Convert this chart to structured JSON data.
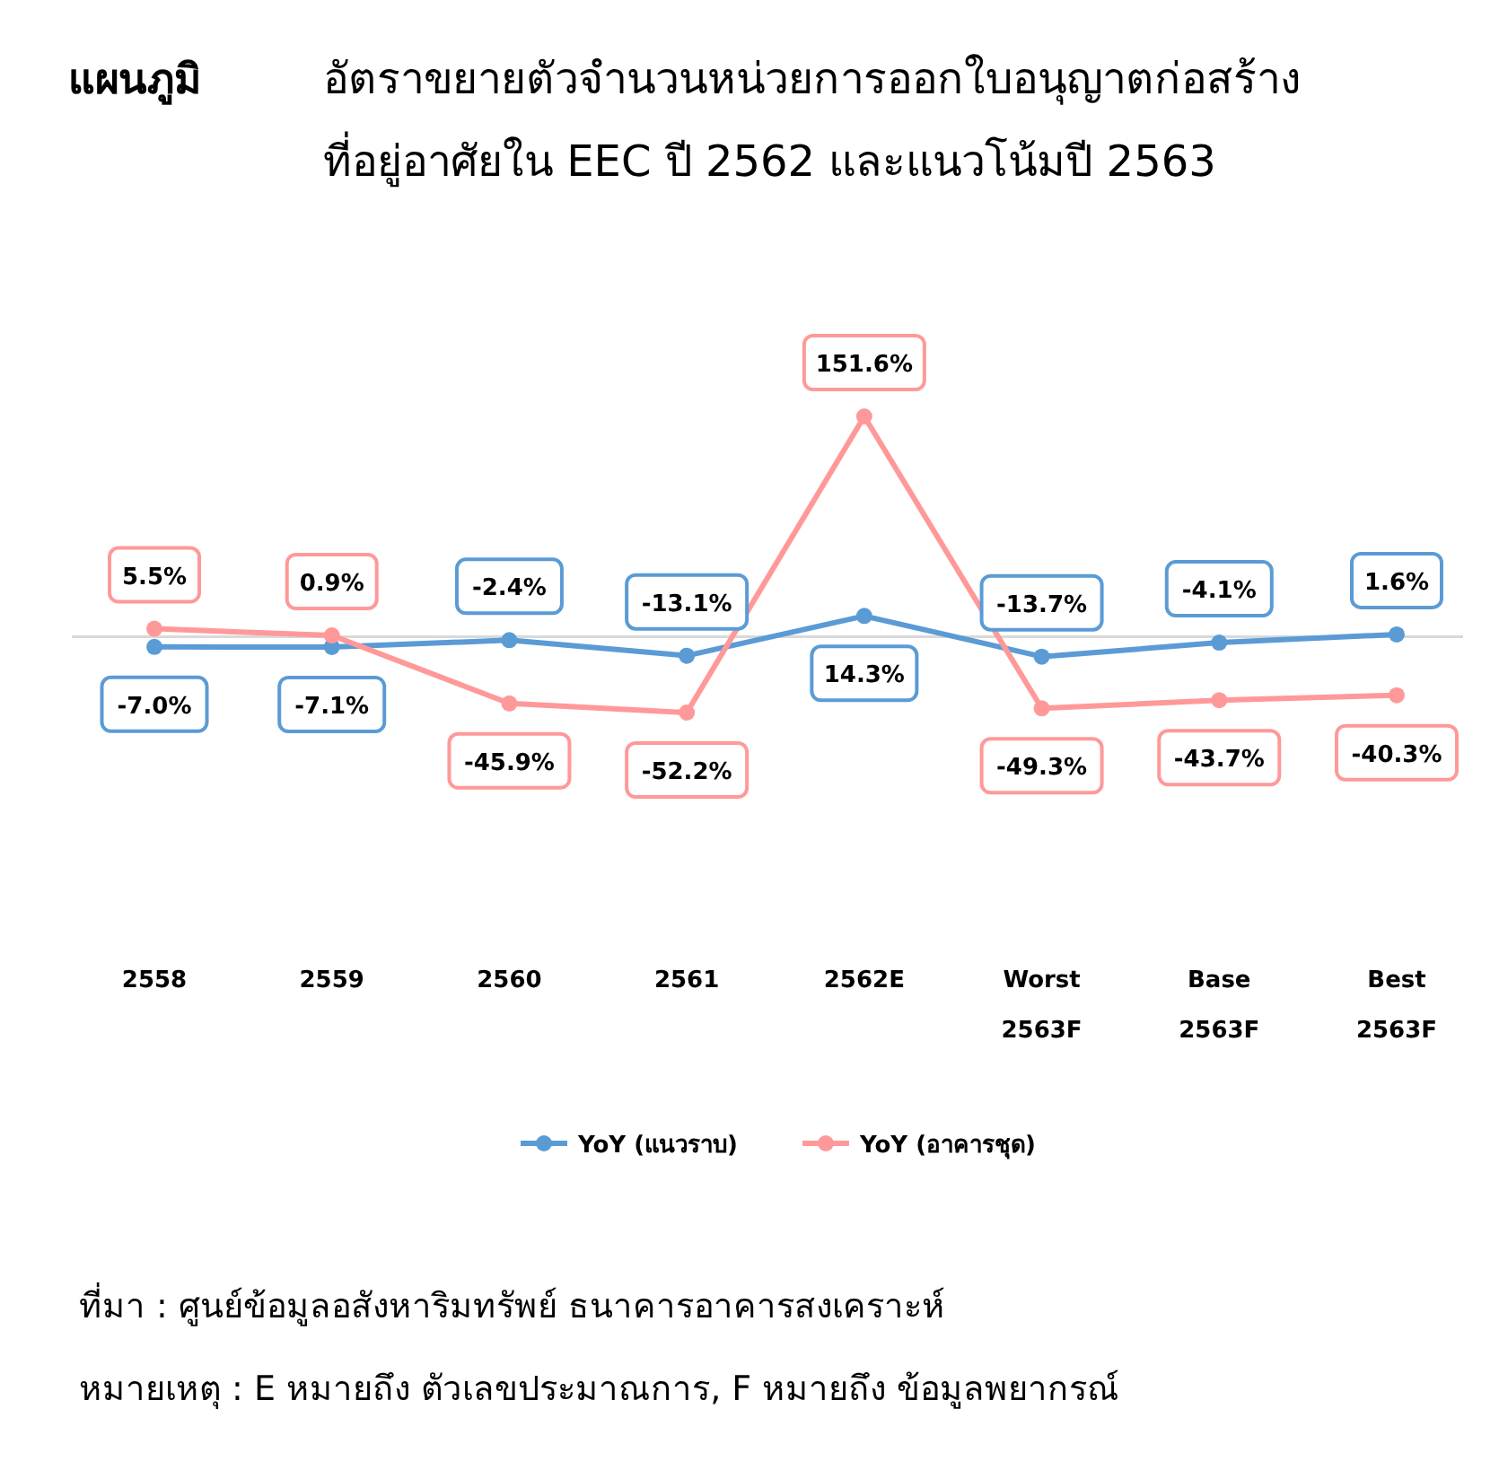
{
  "chart_data": {
    "type": "line",
    "subtitle": "แผนภูมิ",
    "title": "อัตราขยายตัวจำนวนหน่วยการออกใบอนุญาตก่อสร้าง\nที่อยู่อาศัยใน EEC ปี 2562 และแนวโน้มปี 2563",
    "categories": [
      "2558",
      "2559",
      "2560",
      "2561",
      "2562E",
      "Worst\n2563F",
      "Base\n2563F",
      "Best\n2563F"
    ],
    "series": [
      {
        "name": "YoY (แนวราบ)",
        "color": "#5b9bd5",
        "values": [
          -7.0,
          -7.1,
          -2.4,
          -13.1,
          14.3,
          -13.7,
          -4.1,
          1.6
        ],
        "value_labels": [
          "-7.0%",
          "-7.1%",
          "-2.4%",
          "-13.1%",
          "14.3%",
          "-13.7%",
          "-4.1%",
          "1.6%"
        ]
      },
      {
        "name": "YoY (อาคารชุด)",
        "color": "#ff9999",
        "values": [
          5.5,
          0.9,
          -45.9,
          -52.2,
          151.6,
          -49.3,
          -43.7,
          -40.3
        ],
        "value_labels": [
          "5.5%",
          "0.9%",
          "-45.9%",
          "-52.2%",
          "151.6%",
          "-49.3%",
          "-43.7%",
          "-40.3%"
        ]
      }
    ],
    "marker": "circle",
    "legend": "bottom",
    "grid": false,
    "annotations": [
      "ที่มา : ศูนย์ข้อมูลอสังหาริมทรัพย์ ธนาคารอาคารสงเคราะห์",
      "หมายเหตุ : E หมายถึง ตัวเลขประมาณการ, F หมายถึง ข้อมูลพยากรณ์"
    ]
  }
}
